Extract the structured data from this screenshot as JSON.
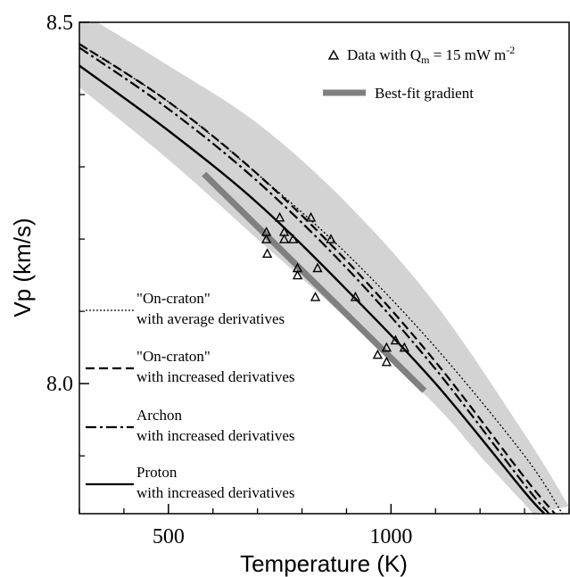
{
  "chart_data": {
    "type": "line",
    "xlabel": "Temperature (K)",
    "ylabel": "Vp (km/s)",
    "xlim": [
      300,
      1400
    ],
    "ylim": [
      7.82,
      8.5
    ],
    "x_ticks": [
      {
        "value": 500,
        "label": "500"
      },
      {
        "value": 1000,
        "label": "1000"
      }
    ],
    "y_ticks": [
      {
        "value": 8.0,
        "label": "8.0"
      },
      {
        "value": 8.5,
        "label": "8.5"
      }
    ],
    "minor_x_ticks": [
      300,
      400,
      600,
      700,
      800,
      900,
      1100,
      1200,
      1300,
      1400
    ],
    "minor_y_ticks": [
      7.9,
      8.1,
      8.2,
      8.3,
      8.4
    ],
    "band": {
      "upper": [
        [
          300,
          8.515
        ],
        [
          500,
          8.44
        ],
        [
          700,
          8.36
        ],
        [
          900,
          8.25
        ],
        [
          1100,
          8.11
        ],
        [
          1300,
          7.93
        ],
        [
          1400,
          7.83
        ]
      ],
      "lower": [
        [
          300,
          8.41
        ],
        [
          500,
          8.31
        ],
        [
          700,
          8.2
        ],
        [
          900,
          8.09
        ],
        [
          1100,
          7.97
        ],
        [
          1200,
          7.9
        ],
        [
          1320,
          7.82
        ]
      ]
    },
    "series": [
      {
        "name": "\"On-craton\" with average derivatives",
        "style": "dotted",
        "points": [
          [
            300,
            8.47
          ],
          [
            500,
            8.39
          ],
          [
            700,
            8.29
          ],
          [
            900,
            8.18
          ],
          [
            1100,
            8.05
          ],
          [
            1300,
            7.9
          ],
          [
            1385,
            7.82
          ]
        ]
      },
      {
        "name": "\"On-craton\" with increased derivatives",
        "style": "dashed",
        "points": [
          [
            300,
            8.47
          ],
          [
            500,
            8.39
          ],
          [
            700,
            8.29
          ],
          [
            900,
            8.17
          ],
          [
            1100,
            8.03
          ],
          [
            1300,
            7.87
          ],
          [
            1368,
            7.82
          ]
        ]
      },
      {
        "name": "Archon with increased derivatives",
        "style": "dashdot",
        "points": [
          [
            300,
            8.465
          ],
          [
            500,
            8.38
          ],
          [
            700,
            8.28
          ],
          [
            900,
            8.16
          ],
          [
            1100,
            8.02
          ],
          [
            1300,
            7.86
          ],
          [
            1355,
            7.82
          ]
        ]
      },
      {
        "name": "Proton with increased derivatives",
        "style": "solid",
        "points": [
          [
            300,
            8.44
          ],
          [
            500,
            8.35
          ],
          [
            700,
            8.25
          ],
          [
            900,
            8.13
          ],
          [
            1100,
            8.0
          ],
          [
            1300,
            7.85
          ],
          [
            1345,
            7.82
          ]
        ]
      }
    ],
    "scatter": {
      "name": "Data with Q_m = 15 mW m^-2",
      "points": [
        [
          720,
          8.21
        ],
        [
          720,
          8.2
        ],
        [
          722,
          8.18
        ],
        [
          750,
          8.23
        ],
        [
          760,
          8.21
        ],
        [
          760,
          8.2
        ],
        [
          780,
          8.2
        ],
        [
          790,
          8.16
        ],
        [
          790,
          8.15
        ],
        [
          820,
          8.23
        ],
        [
          830,
          8.12
        ],
        [
          835,
          8.16
        ],
        [
          865,
          8.2
        ],
        [
          920,
          8.12
        ],
        [
          970,
          8.04
        ],
        [
          990,
          8.05
        ],
        [
          990,
          8.03
        ],
        [
          1010,
          8.06
        ],
        [
          1030,
          8.05
        ]
      ]
    },
    "best_fit": {
      "name": "Best-fit gradient",
      "points": [
        [
          580,
          8.29
        ],
        [
          1075,
          7.99
        ]
      ],
      "color": "#808080"
    },
    "colors": {
      "band": "#d3d3d3",
      "line": "#000000",
      "best_fit": "#808080"
    }
  },
  "legend": {
    "data_label_main": "Data with Q",
    "data_label_sub": "m",
    "data_label_rest": " = 15 mW m",
    "data_label_sup": "-2",
    "bestfit_label": "Best-fit gradient",
    "entries": [
      {
        "line1": "\"On-craton\"",
        "line2": "with average derivatives"
      },
      {
        "line1": "\"On-craton\"",
        "line2": "with increased derivatives"
      },
      {
        "line1": "Archon",
        "line2": "with increased derivatives"
      },
      {
        "line1": "Proton",
        "line2": "with increased derivatives"
      }
    ]
  }
}
